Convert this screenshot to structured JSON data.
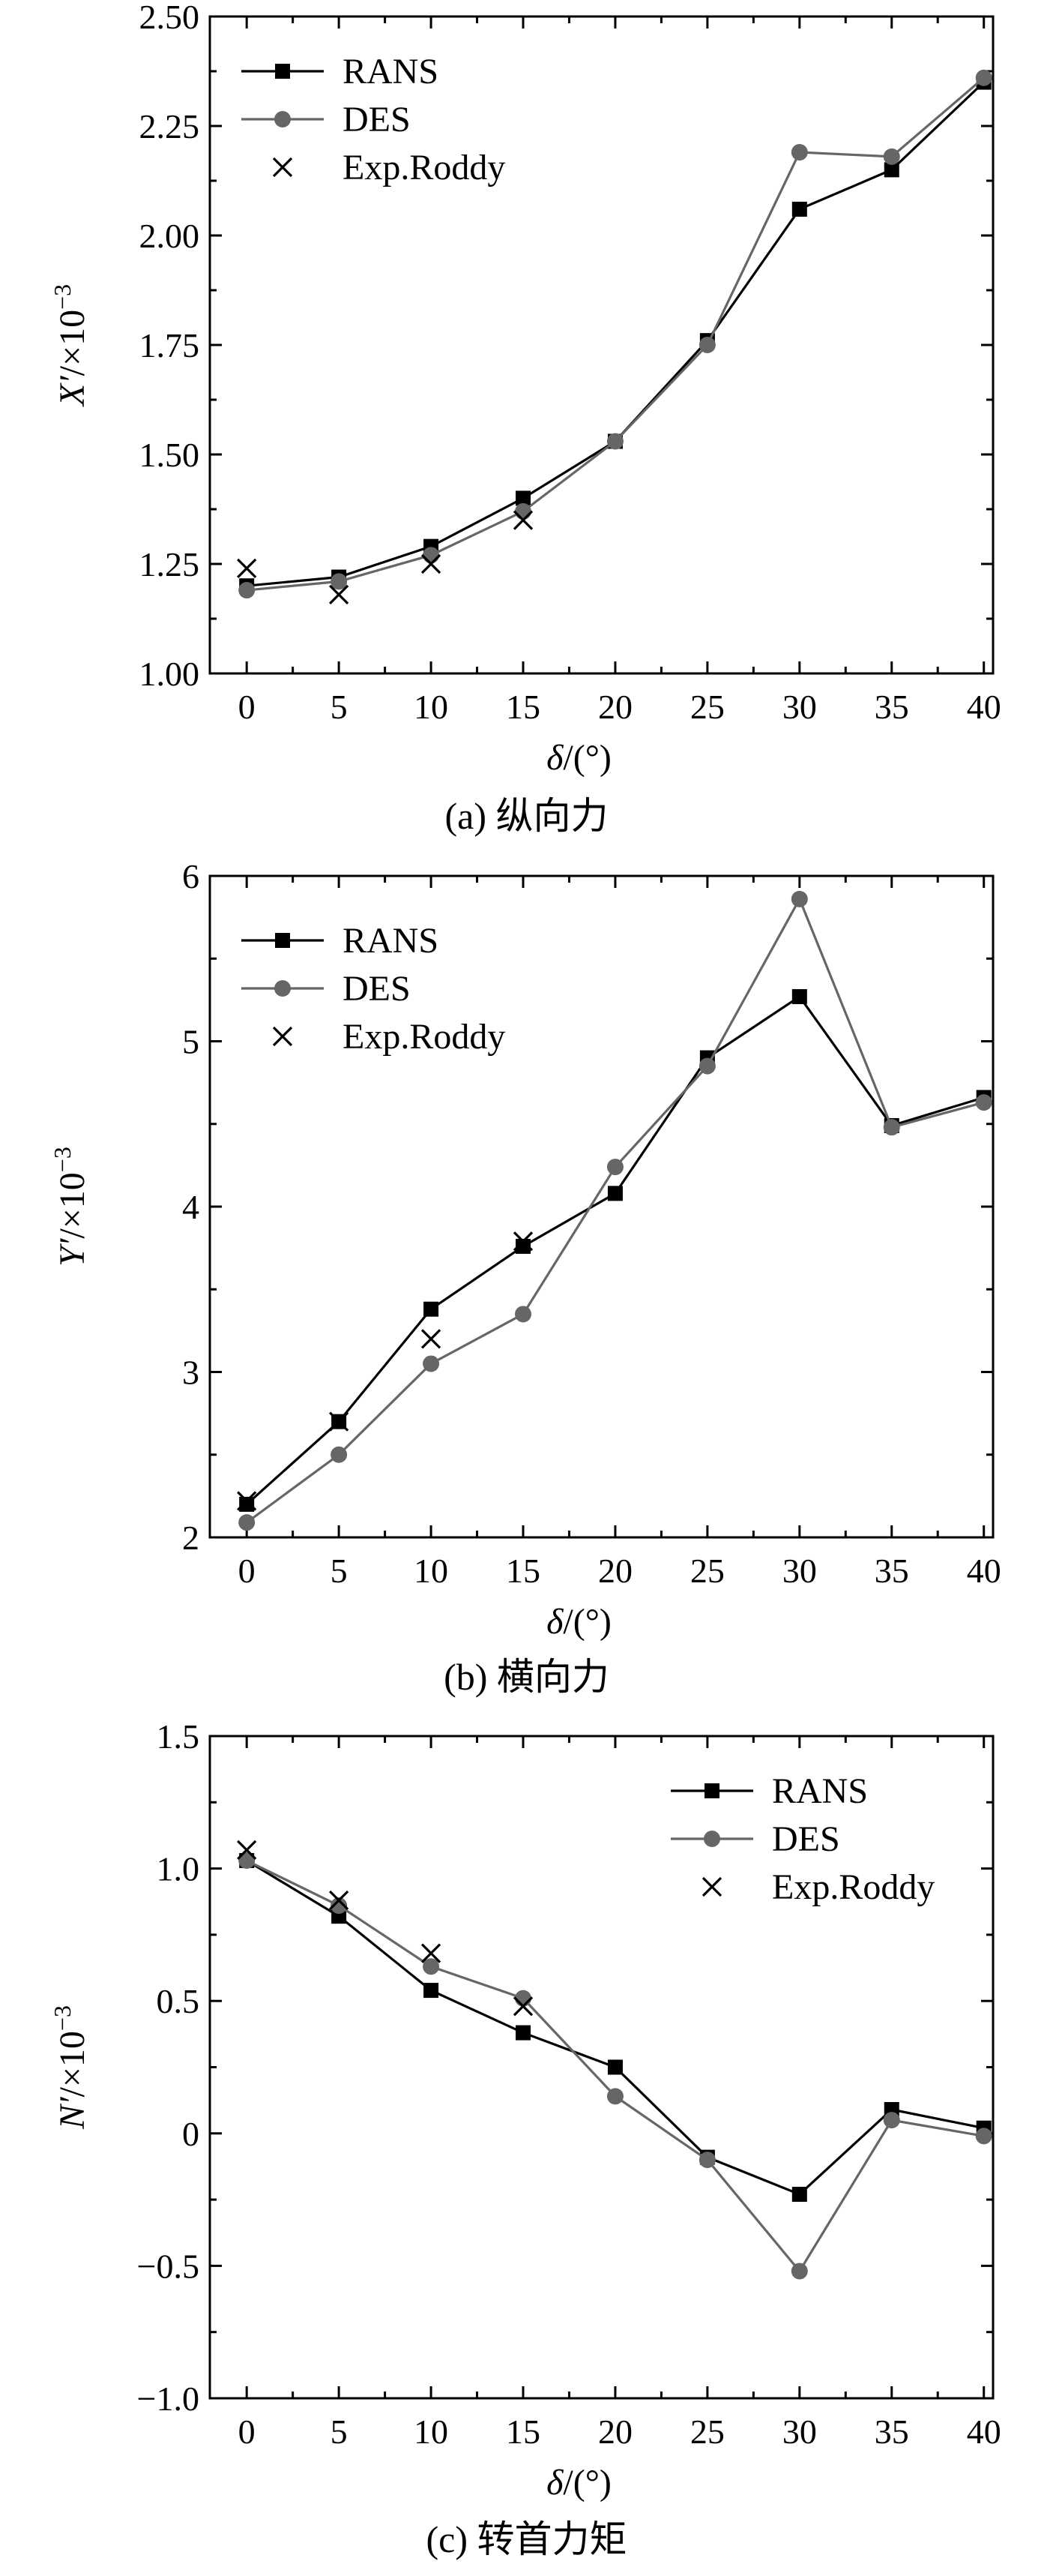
{
  "chart_data": [
    {
      "type": "line",
      "caption": "(a) 纵向力",
      "title": "",
      "xlabel": "δ/(°)",
      "ylabel": "X′/×10⁻³",
      "ylabel_main": "X′",
      "ylabel_unit": "/×10",
      "ylabel_exp": "−3",
      "xlim": [
        -2,
        40.5
      ],
      "ylim": [
        1.0,
        2.5
      ],
      "x_ticks": [
        0,
        5,
        10,
        15,
        20,
        25,
        30,
        35,
        40
      ],
      "x_tick_labels": [
        "0",
        "5",
        "10",
        "15",
        "20",
        "25",
        "30",
        "35",
        "40"
      ],
      "y_ticks": [
        1.0,
        1.25,
        1.5,
        1.75,
        2.0,
        2.25,
        2.5
      ],
      "y_tick_labels": [
        "1.00",
        "1.25",
        "1.50",
        "1.75",
        "2.00",
        "2.25",
        "2.50"
      ],
      "legend_position": "top-left",
      "series": [
        {
          "name": "RANS",
          "marker": "square",
          "color": "#000000",
          "x": [
            0,
            5,
            10,
            15,
            20,
            25,
            30,
            35,
            40
          ],
          "values": [
            1.2,
            1.22,
            1.29,
            1.4,
            1.53,
            1.76,
            2.06,
            2.15,
            2.35
          ]
        },
        {
          "name": "DES",
          "marker": "circle",
          "color": "#666666",
          "x": [
            0,
            5,
            10,
            15,
            20,
            25,
            30,
            35,
            40
          ],
          "values": [
            1.19,
            1.21,
            1.27,
            1.37,
            1.53,
            1.75,
            2.19,
            2.18,
            2.36
          ]
        },
        {
          "name": "Exp.Roddy",
          "marker": "x",
          "color": "#000000",
          "x": [
            0,
            5,
            10,
            15
          ],
          "values": [
            1.24,
            1.18,
            1.25,
            1.35
          ]
        }
      ]
    },
    {
      "type": "line",
      "caption": "(b) 横向力",
      "title": "",
      "xlabel": "δ/(°)",
      "ylabel": "Y′/×10⁻³",
      "ylabel_main": "Y′",
      "ylabel_unit": "/×10",
      "ylabel_exp": "−3",
      "xlim": [
        -2,
        40.5
      ],
      "ylim": [
        2,
        6
      ],
      "x_ticks": [
        0,
        5,
        10,
        15,
        20,
        25,
        30,
        35,
        40
      ],
      "x_tick_labels": [
        "0",
        "5",
        "10",
        "15",
        "20",
        "25",
        "30",
        "35",
        "40"
      ],
      "y_ticks": [
        2,
        3,
        4,
        5,
        6
      ],
      "y_tick_labels": [
        "2",
        "3",
        "4",
        "5",
        "6"
      ],
      "legend_position": "top-left",
      "series": [
        {
          "name": "RANS",
          "marker": "square",
          "color": "#000000",
          "x": [
            0,
            5,
            10,
            15,
            20,
            25,
            30,
            35,
            40
          ],
          "values": [
            2.2,
            2.7,
            3.38,
            3.76,
            4.08,
            4.9,
            5.27,
            4.49,
            4.66
          ]
        },
        {
          "name": "DES",
          "marker": "circle",
          "color": "#666666",
          "x": [
            0,
            5,
            10,
            15,
            20,
            25,
            30,
            35,
            40
          ],
          "values": [
            2.09,
            2.5,
            3.05,
            3.35,
            4.24,
            4.85,
            5.86,
            4.48,
            4.63
          ]
        },
        {
          "name": "Exp.Roddy",
          "marker": "x",
          "color": "#000000",
          "x": [
            0,
            5,
            10,
            15
          ],
          "values": [
            2.22,
            2.7,
            3.2,
            3.79
          ]
        }
      ]
    },
    {
      "type": "line",
      "caption": "(c) 转首力矩",
      "title": "",
      "xlabel": "δ/(°)",
      "ylabel": "N′/×10⁻³",
      "ylabel_main": "N′",
      "ylabel_unit": "/×10",
      "ylabel_exp": "−3",
      "xlim": [
        -2,
        40.5
      ],
      "ylim": [
        -1.0,
        1.5
      ],
      "x_ticks": [
        0,
        5,
        10,
        15,
        20,
        25,
        30,
        35,
        40
      ],
      "x_tick_labels": [
        "0",
        "5",
        "10",
        "15",
        "20",
        "25",
        "30",
        "35",
        "40"
      ],
      "y_ticks": [
        -1.0,
        -0.5,
        0,
        0.5,
        1.0,
        1.5
      ],
      "y_tick_labels": [
        "−1.0",
        "−0.5",
        "0",
        "0.5",
        "1.0",
        "1.5"
      ],
      "legend_position": "top-right",
      "series": [
        {
          "name": "RANS",
          "marker": "square",
          "color": "#000000",
          "x": [
            0,
            5,
            10,
            15,
            20,
            25,
            30,
            35,
            40
          ],
          "values": [
            1.03,
            0.82,
            0.54,
            0.38,
            0.25,
            -0.09,
            -0.23,
            0.09,
            0.02
          ]
        },
        {
          "name": "DES",
          "marker": "circle",
          "color": "#666666",
          "x": [
            0,
            5,
            10,
            15,
            20,
            25,
            30,
            35,
            40
          ],
          "values": [
            1.03,
            0.86,
            0.63,
            0.51,
            0.14,
            -0.1,
            -0.52,
            0.05,
            -0.01
          ]
        },
        {
          "name": "Exp.Roddy",
          "marker": "x",
          "color": "#000000",
          "x": [
            0,
            5,
            10,
            15
          ],
          "values": [
            1.07,
            0.88,
            0.68,
            0.48
          ]
        }
      ]
    }
  ]
}
